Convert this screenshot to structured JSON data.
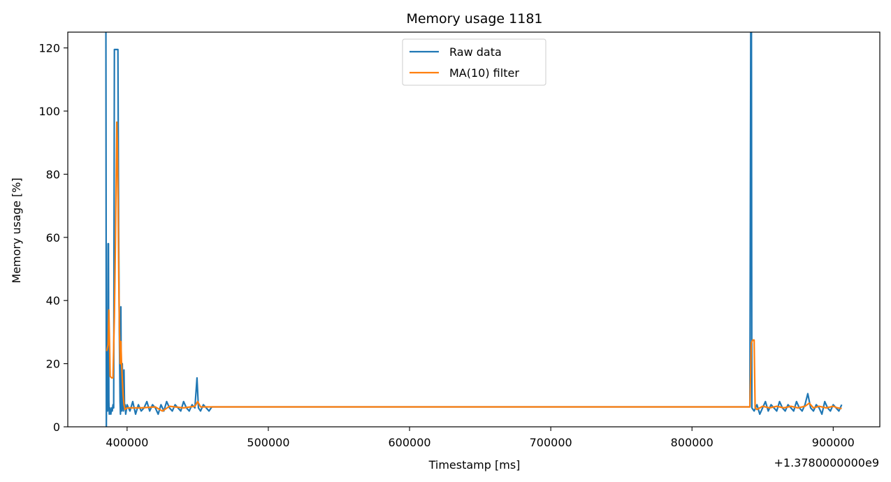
{
  "chart_data": {
    "type": "line",
    "title": "Memory usage 1181",
    "xlabel": "Timestamp [ms]",
    "ylabel": "Memory usage [%]",
    "x_offset_label": "+1.3780000000e9",
    "xlim": [
      358000,
      933000
    ],
    "ylim": [
      0,
      125
    ],
    "x_ticks": [
      400000,
      500000,
      600000,
      700000,
      800000,
      900000
    ],
    "x_tick_labels": [
      "400000",
      "500000",
      "600000",
      "700000",
      "800000",
      "900000"
    ],
    "y_ticks": [
      0,
      20,
      40,
      60,
      80,
      100,
      120
    ],
    "y_tick_labels": [
      "0",
      "20",
      "40",
      "60",
      "80",
      "100",
      "120"
    ],
    "grid": false,
    "legend_position": "upper center",
    "series": [
      {
        "name": "Raw data",
        "color": "#1f77b4",
        "points": [
          [
            385000,
            125
          ],
          [
            385300,
            0
          ],
          [
            385600,
            24
          ],
          [
            385900,
            20
          ],
          [
            386200,
            5
          ],
          [
            386500,
            58
          ],
          [
            386800,
            58
          ],
          [
            387100,
            8
          ],
          [
            387400,
            4
          ],
          [
            387700,
            6
          ],
          [
            388000,
            5
          ],
          [
            388500,
            4
          ],
          [
            389000,
            6
          ],
          [
            389500,
            5
          ],
          [
            390000,
            7
          ],
          [
            390500,
            6
          ],
          [
            391000,
            119.5
          ],
          [
            392000,
            119.5
          ],
          [
            393000,
            119.5
          ],
          [
            393500,
            119.5
          ],
          [
            394000,
            63
          ],
          [
            394500,
            30
          ],
          [
            395000,
            8
          ],
          [
            395300,
            4
          ],
          [
            395600,
            38
          ],
          [
            395900,
            8
          ],
          [
            396200,
            5
          ],
          [
            396600,
            20
          ],
          [
            397000,
            8
          ],
          [
            397400,
            5
          ],
          [
            397800,
            18
          ],
          [
            398200,
            6
          ],
          [
            398600,
            7
          ],
          [
            399000,
            4
          ],
          [
            400000,
            7
          ],
          [
            402000,
            5
          ],
          [
            404000,
            8
          ],
          [
            406000,
            4
          ],
          [
            408000,
            7
          ],
          [
            410000,
            5
          ],
          [
            412000,
            6
          ],
          [
            414000,
            8
          ],
          [
            416000,
            5
          ],
          [
            418000,
            7
          ],
          [
            420000,
            6
          ],
          [
            422000,
            4
          ],
          [
            424000,
            7
          ],
          [
            426000,
            5
          ],
          [
            428000,
            8
          ],
          [
            430000,
            6
          ],
          [
            432000,
            5
          ],
          [
            434000,
            7
          ],
          [
            436000,
            6
          ],
          [
            438000,
            5
          ],
          [
            440000,
            8
          ],
          [
            442000,
            6
          ],
          [
            444000,
            5
          ],
          [
            446000,
            7
          ],
          [
            448000,
            6
          ],
          [
            449500,
            15.5
          ],
          [
            450500,
            6
          ],
          [
            452000,
            5
          ],
          [
            454000,
            7
          ],
          [
            456000,
            6
          ],
          [
            458000,
            5
          ],
          [
            460000,
            6.3
          ],
          [
            840000,
            6.3
          ],
          [
            841000,
            6.3
          ],
          [
            841600,
            125
          ],
          [
            842100,
            125
          ],
          [
            842400,
            6
          ],
          [
            844000,
            5
          ],
          [
            846000,
            7
          ],
          [
            848000,
            4
          ],
          [
            850000,
            6
          ],
          [
            852000,
            8
          ],
          [
            854000,
            5
          ],
          [
            856000,
            7
          ],
          [
            858000,
            6
          ],
          [
            860000,
            5
          ],
          [
            862000,
            8
          ],
          [
            864000,
            6
          ],
          [
            866000,
            5
          ],
          [
            868000,
            7
          ],
          [
            870000,
            6
          ],
          [
            872000,
            5
          ],
          [
            874000,
            8
          ],
          [
            876000,
            6
          ],
          [
            878000,
            5
          ],
          [
            880000,
            7
          ],
          [
            882000,
            10.5
          ],
          [
            884000,
            6
          ],
          [
            886000,
            5
          ],
          [
            888000,
            7
          ],
          [
            890000,
            6
          ],
          [
            892000,
            4
          ],
          [
            894000,
            8
          ],
          [
            896000,
            6
          ],
          [
            898000,
            5
          ],
          [
            900000,
            7
          ],
          [
            902000,
            6
          ],
          [
            904000,
            5
          ],
          [
            906000,
            7
          ]
        ]
      },
      {
        "name": "MA(10) filter",
        "color": "#ff7f0e",
        "points": [
          [
            385500,
            24
          ],
          [
            386500,
            26
          ],
          [
            387100,
            37
          ],
          [
            387600,
            26
          ],
          [
            388000,
            16
          ],
          [
            389000,
            15.5
          ],
          [
            390000,
            15.5
          ],
          [
            391000,
            35
          ],
          [
            391800,
            60
          ],
          [
            392300,
            80
          ],
          [
            392700,
            96.5
          ],
          [
            393100,
            90
          ],
          [
            393600,
            72
          ],
          [
            394100,
            47
          ],
          [
            394600,
            30
          ],
          [
            395100,
            20
          ],
          [
            395600,
            27
          ],
          [
            396100,
            20
          ],
          [
            396600,
            15
          ],
          [
            397200,
            10
          ],
          [
            397800,
            7
          ],
          [
            398500,
            5.5
          ],
          [
            400000,
            6
          ],
          [
            410000,
            6
          ],
          [
            420000,
            6.3
          ],
          [
            425000,
            5
          ],
          [
            430000,
            6.5
          ],
          [
            440000,
            6
          ],
          [
            448000,
            6.5
          ],
          [
            450000,
            8
          ],
          [
            452000,
            6.3
          ],
          [
            460000,
            6.3
          ],
          [
            841000,
            6.3
          ],
          [
            842000,
            26.5
          ],
          [
            843000,
            27.5
          ],
          [
            844000,
            27.5
          ],
          [
            844700,
            6
          ],
          [
            846000,
            5.5
          ],
          [
            850000,
            6.5
          ],
          [
            855000,
            6
          ],
          [
            860000,
            6.5
          ],
          [
            865000,
            6
          ],
          [
            870000,
            6.5
          ],
          [
            875000,
            6
          ],
          [
            880000,
            6.5
          ],
          [
            883000,
            7.5
          ],
          [
            886000,
            6
          ],
          [
            890000,
            6.5
          ],
          [
            895000,
            6
          ],
          [
            900000,
            6.5
          ],
          [
            903000,
            6
          ],
          [
            906000,
            5.8
          ]
        ]
      }
    ]
  }
}
